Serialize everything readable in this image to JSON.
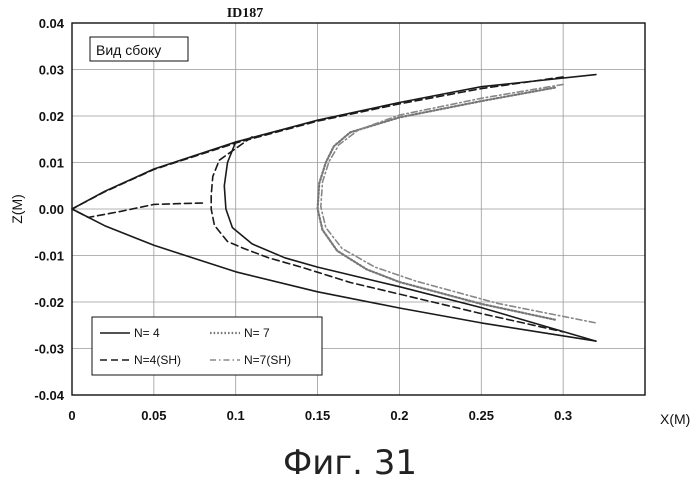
{
  "chart_data": {
    "type": "line",
    "title": "ID187",
    "xlabel": "X(M)",
    "ylabel": "Z(M)",
    "inset_label": "Вид сбоку",
    "caption": "Фиг. 31",
    "xlim": [
      0,
      0.35
    ],
    "ylim": [
      -0.04,
      0.04
    ],
    "x_ticks": [
      "0",
      "0.05",
      "0.1",
      "0.15",
      "0.2",
      "0.25",
      "0.3"
    ],
    "y_ticks": [
      "0.04",
      "0.03",
      "0.02",
      "0.01",
      "0.00",
      "-0.01",
      "-0.02",
      "-0.03",
      "-0.04"
    ],
    "grid": true,
    "legend_position": "bottom-left",
    "series": [
      {
        "name": "N= 4",
        "color": "#1a1a1a",
        "style": "solid",
        "points": [
          [
            0.32,
            0.0289
          ],
          [
            0.25,
            0.0263
          ],
          [
            0.2,
            0.0229
          ],
          [
            0.15,
            0.0191
          ],
          [
            0.1,
            0.0144
          ],
          [
            0.05,
            0.0086
          ],
          [
            0.02,
            0.0038
          ],
          [
            0,
            0
          ],
          [
            0.02,
            -0.0036
          ],
          [
            0.05,
            -0.0078
          ],
          [
            0.1,
            -0.0135
          ],
          [
            0.15,
            -0.0178
          ],
          [
            0.2,
            -0.0213
          ],
          [
            0.25,
            -0.0245
          ],
          [
            0.32,
            -0.0284
          ]
        ]
      },
      {
        "name": "N=4(SH)",
        "color": "#1a1a1a",
        "style": "dashed",
        "points": [
          [
            0.3,
            0.0284
          ],
          [
            0.25,
            0.0259
          ],
          [
            0.2,
            0.0226
          ],
          [
            0.15,
            0.0189
          ],
          [
            0.1,
            0.0142
          ],
          [
            0.05,
            0.0085
          ],
          [
            0.02,
            0.0037
          ],
          [
            0,
            0
          ],
          [
            0.01,
            -0.0018
          ],
          [
            0.03,
            -0.0005
          ],
          [
            0.05,
            0.001
          ],
          [
            0.07,
            0.0012
          ],
          [
            0.08,
            0.0013
          ]
        ]
      },
      {
        "name": "N= 7",
        "color": "#777777",
        "style": "dotted",
        "points": [
          [
            0.295,
            0.0261
          ],
          [
            0.25,
            0.0232
          ],
          [
            0.2,
            0.0197
          ],
          [
            0.17,
            0.0165
          ],
          [
            0.16,
            0.0135
          ],
          [
            0.155,
            0.01
          ],
          [
            0.151,
            0.0055
          ],
          [
            0.15,
            0.0
          ],
          [
            0.153,
            -0.0045
          ],
          [
            0.162,
            -0.009
          ],
          [
            0.18,
            -0.013
          ],
          [
            0.2,
            -0.0157
          ],
          [
            0.25,
            -0.0204
          ],
          [
            0.295,
            -0.0238
          ]
        ]
      },
      {
        "name": "N=7(SH)",
        "color": "#888888",
        "style": "dashdot",
        "points": [
          [
            0.3,
            0.0268
          ],
          [
            0.25,
            0.0238
          ],
          [
            0.2,
            0.0202
          ],
          [
            0.175,
            0.017
          ],
          [
            0.163,
            0.0138
          ],
          [
            0.157,
            0.0102
          ],
          [
            0.153,
            0.0058
          ],
          [
            0.152,
            0.0005
          ],
          [
            0.155,
            -0.004
          ],
          [
            0.165,
            -0.0085
          ],
          [
            0.185,
            -0.0125
          ],
          [
            0.21,
            -0.0155
          ],
          [
            0.26,
            -0.0203
          ],
          [
            0.32,
            -0.0245
          ]
        ]
      },
      {
        "name": "",
        "color": "#1a1a1a",
        "style": "solid",
        "points": [
          [
            0.1,
            0.0144
          ],
          [
            0.095,
            0.01
          ],
          [
            0.093,
            0.005
          ],
          [
            0.094,
            0.0
          ],
          [
            0.098,
            -0.004
          ],
          [
            0.11,
            -0.0075
          ],
          [
            0.13,
            -0.0105
          ],
          [
            0.15,
            -0.0125
          ],
          [
            0.2,
            -0.0167
          ],
          [
            0.25,
            -0.0212
          ],
          [
            0.32,
            -0.0284
          ]
        ]
      },
      {
        "name": "",
        "color": "#1a1a1a",
        "style": "dashed",
        "points": [
          [
            0.11,
            0.0155
          ],
          [
            0.09,
            0.0105
          ],
          [
            0.086,
            0.007
          ],
          [
            0.085,
            0.003
          ],
          [
            0.085,
            0.0
          ],
          [
            0.087,
            -0.0035
          ],
          [
            0.095,
            -0.007
          ],
          [
            0.105,
            -0.0085
          ],
          [
            0.12,
            -0.0105
          ],
          [
            0.14,
            -0.0125
          ],
          [
            0.17,
            -0.0158
          ],
          [
            0.2,
            -0.0183
          ],
          [
            0.25,
            -0.0225
          ],
          [
            0.3,
            -0.0264
          ]
        ]
      }
    ]
  }
}
